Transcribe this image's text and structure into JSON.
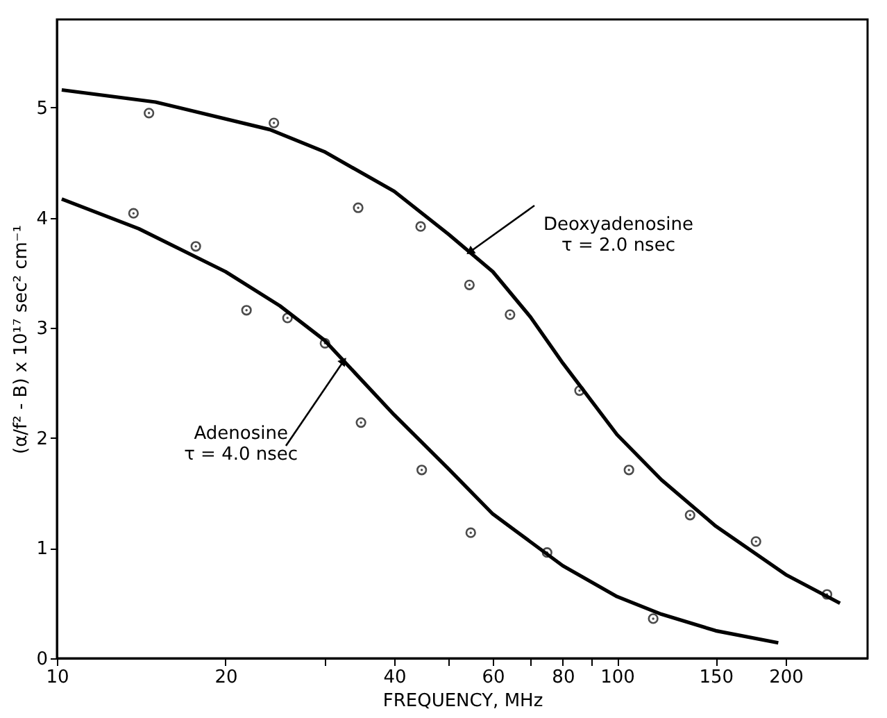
{
  "chart_data": {
    "type": "scatter",
    "xlabel": "FREQUENCY, MHz",
    "ylabel": "(α/f² - B) x 10¹⁷  sec² cm⁻¹",
    "log": "x",
    "xlim": [
      10,
      280
    ],
    "ylim": [
      0,
      5.8
    ],
    "xticks": [
      10,
      20,
      {
        "value": 30,
        "label": null
      },
      40,
      {
        "value": 50,
        "label": null
      },
      60,
      {
        "value": 70,
        "label": null
      },
      80,
      {
        "value": 90,
        "label": null
      },
      100,
      150,
      200
    ],
    "yticks": [
      0,
      1,
      2,
      3,
      4,
      5
    ],
    "grid": false,
    "legend": false,
    "series": [
      {
        "marker": "circle",
        "color": "#000000",
        "x": [
          14.6,
          24.4,
          34.5,
          44.6,
          54.5,
          64.4,
          85.7,
          105,
          135,
          177,
          237
        ],
        "values": [
          4.95,
          4.86,
          4.09,
          3.92,
          3.39,
          3.12,
          2.43,
          1.71,
          1.3,
          1.06,
          0.58
        ]
      },
      {
        "marker": "circle",
        "color": "#000000",
        "x": [
          13.7,
          17.7,
          21.8,
          25.8,
          30.1,
          34.9,
          44.8,
          54.8,
          75,
          116
        ],
        "values": [
          4.04,
          3.74,
          3.16,
          3.09,
          2.86,
          2.14,
          1.71,
          1.14,
          0.96,
          0.36
        ]
      },
      {
        "type": "line",
        "line_style": "solid",
        "color": "#000000",
        "x": [
          10.2,
          15,
          24,
          30,
          40,
          50,
          60,
          70,
          80,
          100,
          120,
          150,
          200,
          250
        ],
        "values": [
          5.16,
          5.05,
          4.8,
          4.6,
          4.24,
          3.85,
          3.51,
          3.1,
          2.68,
          2.03,
          1.62,
          1.2,
          0.76,
          0.5
        ]
      },
      {
        "type": "line",
        "line_style": "solid",
        "color": "#000000",
        "x": [
          10.2,
          14,
          20,
          25,
          30,
          40,
          50,
          60,
          80,
          100,
          120,
          150,
          194
        ],
        "values": [
          4.17,
          3.9,
          3.51,
          3.2,
          2.89,
          2.21,
          1.72,
          1.31,
          0.84,
          0.56,
          0.4,
          0.25,
          0.14
        ]
      }
    ],
    "annotations": [
      {
        "text": "Deoxyadenosine\nτ = 2.0 nsec",
        "x": 54.6,
        "y": 3.69
      },
      {
        "text": "Adenosine\nτ = 4.0 nsec",
        "x": 32.5,
        "y": 2.7
      }
    ]
  }
}
